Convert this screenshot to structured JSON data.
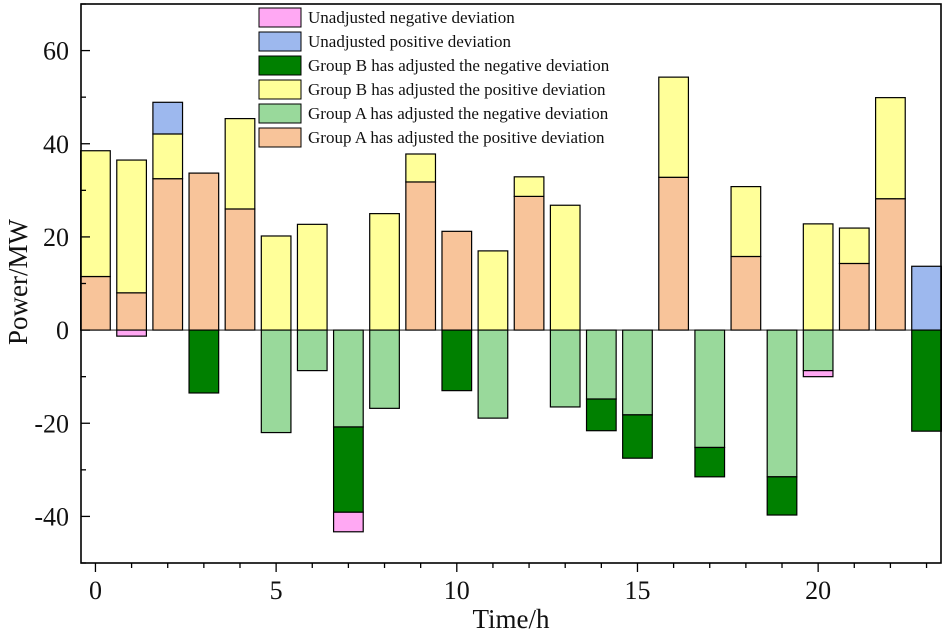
{
  "chart_data": {
    "type": "bar",
    "stacked": true,
    "title": "",
    "xlabel": "Time/h",
    "ylabel": "Power/MW",
    "xlim": [
      -0.4,
      23.4
    ],
    "ylim": [
      -50,
      70
    ],
    "xticks": [
      0,
      5,
      10,
      15,
      20
    ],
    "yticks": [
      -40,
      -20,
      0,
      20,
      40,
      60
    ],
    "x": [
      0,
      1,
      2,
      3,
      4,
      5,
      6,
      7,
      8,
      9,
      10,
      11,
      12,
      13,
      14,
      15,
      16,
      17,
      18,
      19,
      20,
      21,
      22,
      23
    ],
    "legend_position": "top-center",
    "series": [
      {
        "key": "a_pos",
        "name": "Group A has adjusted the positive deviation",
        "color": "#F8C49A",
        "values": [
          11.5,
          8,
          32.5,
          33.7,
          26,
          0,
          0,
          0,
          0,
          31.8,
          21.2,
          0,
          28.7,
          0,
          0,
          0,
          32.8,
          0,
          15.8,
          0,
          0,
          14.3,
          28.2,
          0
        ]
      },
      {
        "key": "b_pos",
        "name": "Group B has adjusted the positive deviation",
        "color": "#FFFF99",
        "values": [
          27,
          28.5,
          9.6,
          0,
          19.4,
          20.2,
          22.7,
          0,
          25,
          6,
          0,
          17,
          4.2,
          26.8,
          0,
          0,
          21.5,
          0,
          15,
          0,
          22.8,
          7.6,
          21.7,
          0
        ]
      },
      {
        "key": "u_pos",
        "name": "Unadjusted positive deviation",
        "color": "#9DB8EE",
        "values": [
          0,
          0,
          6.8,
          0,
          0,
          0,
          0,
          0,
          0,
          0,
          0,
          0,
          0,
          0,
          0,
          0,
          0,
          0,
          0,
          0,
          0,
          0,
          0,
          13.7
        ]
      },
      {
        "key": "a_neg",
        "name": "Group A has adjusted the negative deviation",
        "color": "#99D99B",
        "values": [
          0,
          0,
          0,
          0,
          0,
          -22,
          -8.7,
          -20.8,
          -16.8,
          0,
          0,
          -18.9,
          0,
          -16.5,
          -14.8,
          -18.2,
          0,
          -25.2,
          0,
          -31.5,
          -8.7,
          0,
          0,
          0
        ]
      },
      {
        "key": "b_neg",
        "name": "Group B has adjusted the negative deviation",
        "color": "#008000",
        "values": [
          0,
          0,
          0,
          -13.5,
          0,
          0,
          0,
          -18.3,
          0,
          0,
          -13,
          0,
          0,
          0,
          -6.8,
          -9.3,
          0,
          -6.3,
          0,
          -8.2,
          0,
          0,
          0,
          -21.7
        ]
      },
      {
        "key": "u_neg",
        "name": "Unadjusted negative deviation",
        "color": "#FFA8F3",
        "values": [
          0,
          -1.3,
          0,
          0,
          0,
          0,
          0,
          -4.2,
          0,
          0,
          0,
          0,
          0,
          0,
          0,
          0,
          0,
          0,
          0,
          0,
          -1.3,
          0,
          0,
          0
        ]
      }
    ],
    "legend_order": [
      "u_neg",
      "u_pos",
      "b_neg",
      "b_pos",
      "a_neg",
      "a_pos"
    ]
  }
}
